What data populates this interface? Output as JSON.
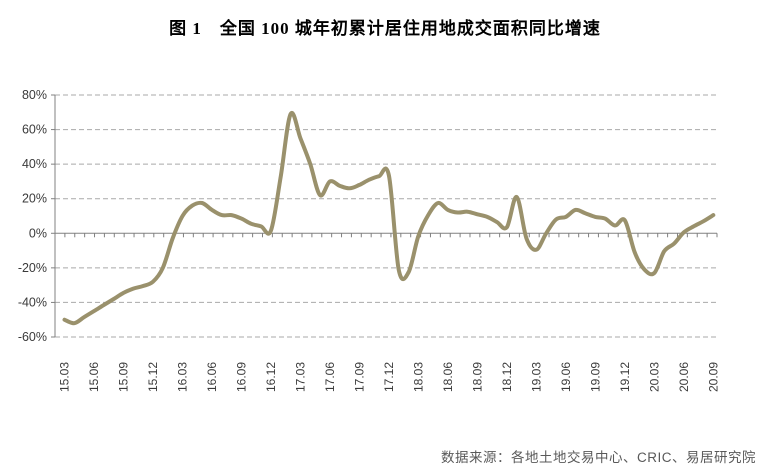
{
  "title": "图 1　全国 100 城年初累计居住用地成交面积同比增速",
  "source_note": "数据来源：各地土地交易中心、CRIC、易居研究院",
  "colors": {
    "line": "#9A916C",
    "gridline": "#A9A9A9",
    "axis": "#808080",
    "tick_label": "#3A3A3A",
    "source_text": "#595959",
    "background": "#FFFFFF"
  },
  "chart_data": {
    "type": "line",
    "title": "全国100城年初累计居住用地成交面积同比增速",
    "smoothed": true,
    "legend": "none",
    "grid": "dashed-horizontal",
    "ylabel": "",
    "xlabel": "",
    "ylim": [
      -60,
      80
    ],
    "ytick_step": 20,
    "yticks": [
      80,
      60,
      40,
      20,
      0,
      -20,
      -40,
      -60
    ],
    "ytick_labels": [
      "80%",
      "60%",
      "40%",
      "20%",
      "0%",
      "-20%",
      "-40%",
      "-60%"
    ],
    "x_axis_label_interval_months": 3,
    "x_tick_labels": [
      "15.03",
      "15.06",
      "15.09",
      "15.12",
      "16.03",
      "16.06",
      "16.09",
      "16.12",
      "17.03",
      "17.06",
      "17.09",
      "17.12",
      "18.03",
      "18.06",
      "18.09",
      "18.12",
      "19.03",
      "19.06",
      "19.09",
      "19.12",
      "20.03",
      "20.06",
      "20.09"
    ],
    "x": [
      "15.03",
      "15.04",
      "15.05",
      "15.06",
      "15.07",
      "15.08",
      "15.09",
      "15.10",
      "15.11",
      "15.12",
      "16.01",
      "16.02",
      "16.03",
      "16.04",
      "16.05",
      "16.06",
      "16.07",
      "16.08",
      "16.09",
      "16.10",
      "16.11",
      "16.12",
      "17.01",
      "17.02",
      "17.03",
      "17.04",
      "17.05",
      "17.06",
      "17.07",
      "17.08",
      "17.09",
      "17.10",
      "17.11",
      "17.12",
      "18.01",
      "18.02",
      "18.03",
      "18.04",
      "18.05",
      "18.06",
      "18.07",
      "18.08",
      "18.09",
      "18.10",
      "18.11",
      "18.12",
      "19.01",
      "19.02",
      "19.03",
      "19.04",
      "19.05",
      "19.06",
      "19.07",
      "19.08",
      "19.09",
      "19.10",
      "19.11",
      "19.12",
      "20.01",
      "20.02",
      "20.03",
      "20.04",
      "20.05",
      "20.06",
      "20.07",
      "20.08",
      "20.09"
    ],
    "values": [
      -50,
      -52,
      -48.5,
      -45,
      -41.5,
      -38,
      -34.5,
      -32,
      -30.5,
      -28,
      -20,
      -3,
      10,
      16,
      17.5,
      13.5,
      10.5,
      10.5,
      8.5,
      5.5,
      4,
      1.5,
      33,
      69,
      55,
      40,
      22,
      30,
      27.5,
      26,
      28,
      31,
      33,
      33.5,
      -21,
      -22.5,
      -1.5,
      10.5,
      17.5,
      13.5,
      12,
      12.5,
      11,
      9.5,
      6.5,
      3.5,
      21,
      -3,
      -9.5,
      0,
      8,
      9.5,
      13.5,
      11.5,
      9.5,
      8.5,
      4.5,
      7.5,
      -11,
      -21,
      -23,
      -10.5,
      -6,
      0.5,
      4,
      7,
      10.5
    ],
    "unit": "percent"
  }
}
